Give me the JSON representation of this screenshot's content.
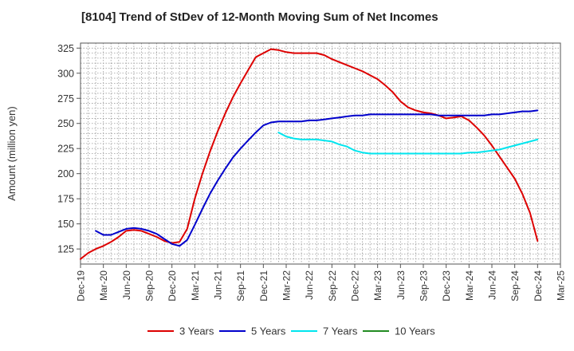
{
  "chart_data": {
    "type": "line",
    "title": "[8104]  Trend of StDev of 12-Month Moving Sum of Net Incomes",
    "ylabel": "Amount (million yen)",
    "xlabel": "",
    "ylim": [
      110,
      330
    ],
    "yticks": [
      125,
      150,
      175,
      200,
      225,
      250,
      275,
      300,
      325
    ],
    "x_tick_labels": [
      "Dec-19",
      "Mar-20",
      "Jun-20",
      "Sep-20",
      "Dec-20",
      "Mar-21",
      "Jun-21",
      "Sep-21",
      "Dec-21",
      "Mar-22",
      "Jun-22",
      "Sep-22",
      "Dec-22",
      "Mar-23",
      "Jun-23",
      "Sep-23",
      "Dec-23",
      "Mar-24",
      "Jun-24",
      "Sep-24",
      "Dec-24",
      "Mar-25"
    ],
    "grid": true,
    "legend_position": "bottom",
    "series": [
      {
        "name": "3 Years",
        "color": "#dd0000",
        "points": [
          [
            "Dec-19",
            115
          ],
          [
            "Jan-20",
            121
          ],
          [
            "Feb-20",
            125
          ],
          [
            "Mar-20",
            128
          ],
          [
            "Apr-20",
            132
          ],
          [
            "May-20",
            137
          ],
          [
            "Jun-20",
            143
          ],
          [
            "Jul-20",
            144
          ],
          [
            "Aug-20",
            143
          ],
          [
            "Sep-20",
            140
          ],
          [
            "Oct-20",
            137
          ],
          [
            "Nov-20",
            133
          ],
          [
            "Dec-20",
            131
          ],
          [
            "Jan-21",
            132
          ],
          [
            "Feb-21",
            145
          ],
          [
            "Mar-21",
            175
          ],
          [
            "Apr-21",
            200
          ],
          [
            "May-21",
            222
          ],
          [
            "Jun-21",
            242
          ],
          [
            "Jul-21",
            260
          ],
          [
            "Aug-21",
            276
          ],
          [
            "Sep-21",
            290
          ],
          [
            "Oct-21",
            303
          ],
          [
            "Nov-21",
            316
          ],
          [
            "Dec-21",
            320
          ],
          [
            "Jan-22",
            324
          ],
          [
            "Feb-22",
            323
          ],
          [
            "Mar-22",
            321
          ],
          [
            "Apr-22",
            320
          ],
          [
            "May-22",
            320
          ],
          [
            "Jun-22",
            320
          ],
          [
            "Jul-22",
            320
          ],
          [
            "Aug-22",
            318
          ],
          [
            "Sep-22",
            314
          ],
          [
            "Oct-22",
            311
          ],
          [
            "Nov-22",
            308
          ],
          [
            "Dec-22",
            305
          ],
          [
            "Jan-23",
            302
          ],
          [
            "Feb-23",
            298
          ],
          [
            "Mar-23",
            294
          ],
          [
            "Apr-23",
            288
          ],
          [
            "May-23",
            281
          ],
          [
            "Jun-23",
            272
          ],
          [
            "Jul-23",
            266
          ],
          [
            "Aug-23",
            263
          ],
          [
            "Sep-23",
            261
          ],
          [
            "Oct-23",
            260
          ],
          [
            "Nov-23",
            258
          ],
          [
            "Dec-23",
            255
          ],
          [
            "Jan-24",
            256
          ],
          [
            "Feb-24",
            257
          ],
          [
            "Mar-24",
            253
          ],
          [
            "Apr-24",
            246
          ],
          [
            "May-24",
            238
          ],
          [
            "Jun-24",
            228
          ],
          [
            "Jul-24",
            217
          ],
          [
            "Aug-24",
            206
          ],
          [
            "Sep-24",
            195
          ],
          [
            "Oct-24",
            180
          ],
          [
            "Nov-24",
            161
          ],
          [
            "Dec-24",
            133
          ]
        ]
      },
      {
        "name": "5 Years",
        "color": "#0000cc",
        "points": [
          [
            "Feb-20",
            143
          ],
          [
            "Mar-20",
            139
          ],
          [
            "Apr-20",
            139
          ],
          [
            "May-20",
            142
          ],
          [
            "Jun-20",
            145
          ],
          [
            "Jul-20",
            146
          ],
          [
            "Aug-20",
            145
          ],
          [
            "Sep-20",
            143
          ],
          [
            "Oct-20",
            140
          ],
          [
            "Nov-20",
            135
          ],
          [
            "Dec-20",
            130
          ],
          [
            "Jan-21",
            128
          ],
          [
            "Feb-21",
            134
          ],
          [
            "Mar-21",
            149
          ],
          [
            "Apr-21",
            165
          ],
          [
            "May-21",
            180
          ],
          [
            "Jun-21",
            193
          ],
          [
            "Jul-21",
            205
          ],
          [
            "Aug-21",
            216
          ],
          [
            "Sep-21",
            225
          ],
          [
            "Oct-21",
            233
          ],
          [
            "Nov-21",
            241
          ],
          [
            "Dec-21",
            248
          ],
          [
            "Jan-22",
            251
          ],
          [
            "Feb-22",
            252
          ],
          [
            "Mar-22",
            252
          ],
          [
            "Apr-22",
            252
          ],
          [
            "May-22",
            252
          ],
          [
            "Jun-22",
            253
          ],
          [
            "Jul-22",
            253
          ],
          [
            "Aug-22",
            254
          ],
          [
            "Sep-22",
            255
          ],
          [
            "Oct-22",
            256
          ],
          [
            "Nov-22",
            257
          ],
          [
            "Dec-22",
            258
          ],
          [
            "Jan-23",
            258
          ],
          [
            "Feb-23",
            259
          ],
          [
            "Mar-23",
            259
          ],
          [
            "Apr-23",
            259
          ],
          [
            "May-23",
            259
          ],
          [
            "Jun-23",
            259
          ],
          [
            "Jul-23",
            259
          ],
          [
            "Aug-23",
            259
          ],
          [
            "Sep-23",
            259
          ],
          [
            "Oct-23",
            259
          ],
          [
            "Nov-23",
            258
          ],
          [
            "Dec-23",
            258
          ],
          [
            "Jan-24",
            258
          ],
          [
            "Feb-24",
            258
          ],
          [
            "Mar-24",
            258
          ],
          [
            "Apr-24",
            258
          ],
          [
            "May-24",
            258
          ],
          [
            "Jun-24",
            259
          ],
          [
            "Jul-24",
            259
          ],
          [
            "Aug-24",
            260
          ],
          [
            "Sep-24",
            261
          ],
          [
            "Oct-24",
            262
          ],
          [
            "Nov-24",
            262
          ],
          [
            "Dec-24",
            263
          ]
        ]
      },
      {
        "name": "7 Years",
        "color": "#00e5ee",
        "points": [
          [
            "Feb-22",
            241
          ],
          [
            "Mar-22",
            237
          ],
          [
            "Apr-22",
            235
          ],
          [
            "May-22",
            234
          ],
          [
            "Jun-22",
            234
          ],
          [
            "Jul-22",
            234
          ],
          [
            "Aug-22",
            233
          ],
          [
            "Sep-22",
            232
          ],
          [
            "Oct-22",
            229
          ],
          [
            "Nov-22",
            227
          ],
          [
            "Dec-22",
            223
          ],
          [
            "Jan-23",
            221
          ],
          [
            "Feb-23",
            220
          ],
          [
            "Mar-23",
            220
          ],
          [
            "Apr-23",
            220
          ],
          [
            "May-23",
            220
          ],
          [
            "Jun-23",
            220
          ],
          [
            "Jul-23",
            220
          ],
          [
            "Aug-23",
            220
          ],
          [
            "Sep-23",
            220
          ],
          [
            "Oct-23",
            220
          ],
          [
            "Nov-23",
            220
          ],
          [
            "Dec-23",
            220
          ],
          [
            "Jan-24",
            220
          ],
          [
            "Feb-24",
            220
          ],
          [
            "Mar-24",
            221
          ],
          [
            "Apr-24",
            221
          ],
          [
            "May-24",
            222
          ],
          [
            "Jun-24",
            223
          ],
          [
            "Jul-24",
            224
          ],
          [
            "Aug-24",
            226
          ],
          [
            "Sep-24",
            228
          ],
          [
            "Oct-24",
            230
          ],
          [
            "Nov-24",
            232
          ],
          [
            "Dec-24",
            234
          ]
        ]
      },
      {
        "name": "10 Years",
        "color": "#228b22",
        "points": []
      }
    ]
  }
}
